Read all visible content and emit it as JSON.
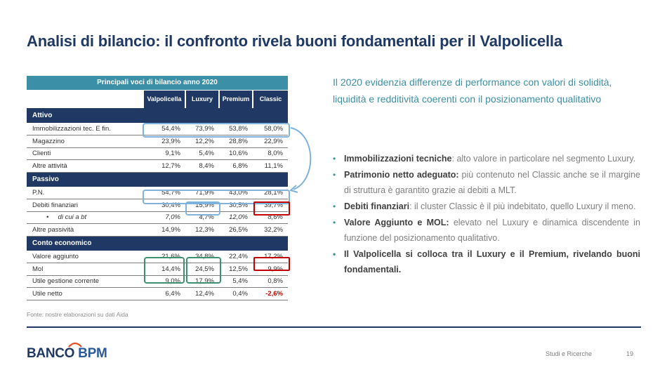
{
  "title": "Analisi di bilancio: il confronto rivela buoni fondamentali per il Valpolicella",
  "table": {
    "title": "Principali voci di bilancio anno 2020",
    "columns": [
      "Valpolicella",
      "Luxury",
      "Premium",
      "Classic"
    ],
    "sections": [
      {
        "name": "Attivo",
        "rows": [
          {
            "label": "Immobilizzazioni tec. E fin.",
            "values": [
              "54,4%",
              "73,9%",
              "53,8%",
              "58,0%"
            ]
          },
          {
            "label": "Magazzino",
            "values": [
              "23,9%",
              "12,2%",
              "28,8%",
              "22,9%"
            ]
          },
          {
            "label": "Clienti",
            "values": [
              "9,1%",
              "5,4%",
              "10,6%",
              "8,0%"
            ]
          },
          {
            "label": "Altre attività",
            "values": [
              "12,7%",
              "8,4%",
              "6,8%",
              "11,1%"
            ]
          }
        ]
      },
      {
        "name": "Passivo",
        "rows": [
          {
            "label": "P.N.",
            "values": [
              "54,7%",
              "71,9%",
              "43,0%",
              "28,1%"
            ]
          },
          {
            "label": "Debiti finanziari",
            "values": [
              "30,4%",
              "15,9%",
              "30,5%",
              "39,7%"
            ]
          },
          {
            "label": "di cui a bt",
            "values": [
              "7,0%",
              "4,7%",
              "12,0%",
              "8,6%"
            ]
          },
          {
            "label": "Altre passività",
            "values": [
              "14,9%",
              "12,3%",
              "26,5%",
              "32,2%"
            ]
          }
        ]
      },
      {
        "name": "Conto economico",
        "rows": [
          {
            "label": "Valore aggiunto",
            "values": [
              "21,6%",
              "34,8%",
              "22,4%",
              "17,2%"
            ]
          },
          {
            "label": "Mol",
            "values": [
              "14,4%",
              "24,5%",
              "12,5%",
              "9,9%"
            ]
          },
          {
            "label": "Utile gestione corrente",
            "values": [
              "9,0%",
              "17,9%",
              "5,4%",
              "0,8%"
            ]
          },
          {
            "label": "Utile netto",
            "values": [
              "6,4%",
              "12,4%",
              "0,4%",
              "-2,6%"
            ]
          }
        ]
      }
    ]
  },
  "source": "Fonte: nostre elaborazioni su dati Aida",
  "intro": "Il 2020 evidenzia differenze di performance con valori di solidità, liquidità e redditività coerenti con il posizionamento qualitativo",
  "bullets": [
    {
      "bold": "Immobilizzazioni tecniche",
      "text": ": alto valore in particolare nel segmento Luxury."
    },
    {
      "bold": "Patrimonio netto adeguato:",
      "text": " più contenuto nel Classic anche se il margine di struttura è garantito grazie ai debiti a MLT."
    },
    {
      "bold": "Debiti finanziari",
      "text": ": il cluster Classic è il più indebitato, quello Luxury il meno."
    },
    {
      "bold": "Valore Aggiunto e MOL:",
      "text": " elevato nel Luxury e dinamica discendente in funzione del posizionamento qualitativo."
    },
    {
      "bold": "Il Valpolicella si colloca tra il Luxury e il Premium, rivelando buoni fondamentali.",
      "text": ""
    }
  ],
  "footer": {
    "logo_part1": "BANCO ",
    "logo_part2": "BPM",
    "section": "Studi e Ricerche",
    "page": "19"
  },
  "colors": {
    "navy": "#1f3864",
    "teal": "#3b8fa6",
    "highlight_blue": "#7fb2dd",
    "highlight_green": "#3e9170",
    "highlight_red": "#c00000"
  }
}
